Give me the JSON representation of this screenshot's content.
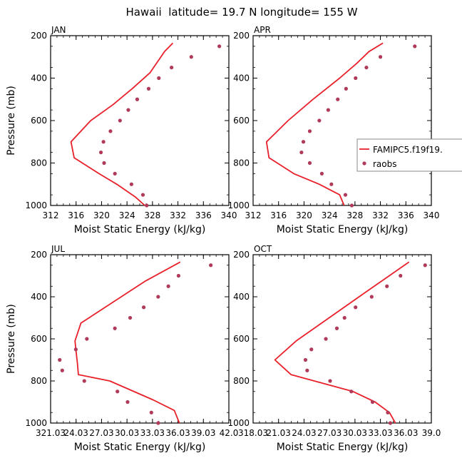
{
  "title": "Hawaii  latitude= 19.7 N longitude= 155 W",
  "colors": {
    "model": "#e8202a",
    "obs": "#b03a5a",
    "axis": "#000000"
  },
  "legend": {
    "model_label": "FAMIPC5.f19f19.",
    "obs_label": "raobs"
  },
  "chart_data": [
    {
      "type": "line",
      "panel": "JAN",
      "xlabel": "Moist Static Energy (kJ/kg)",
      "ylabel": "Pressure (mb)",
      "xlim": [
        312,
        340
      ],
      "ylim": [
        1000,
        200
      ],
      "xticks": [
        312,
        316,
        320,
        324,
        328,
        332,
        336,
        340
      ],
      "xtick_labels": [
        "312",
        "316",
        "320",
        "324",
        "328",
        "332",
        "336",
        "340"
      ],
      "yticks": [
        200,
        400,
        600,
        800,
        1000
      ],
      "ytick_labels": [
        "200",
        "400",
        "600",
        "800",
        "1000"
      ],
      "model": {
        "p": [
          1000,
          960,
          900,
          850,
          775,
          700,
          600,
          525,
          450,
          375,
          275,
          235
        ],
        "x": [
          326.8,
          325.3,
          322.4,
          319.6,
          315.7,
          315.2,
          318.3,
          321.8,
          324.8,
          327.6,
          329.9,
          331.2
        ]
      },
      "obs": {
        "p": [
          250,
          300,
          350,
          400,
          450,
          500,
          550,
          600,
          650,
          700,
          750,
          800,
          850,
          900,
          950,
          1000
        ],
        "x": [
          338.5,
          334.1,
          331.0,
          329.0,
          327.4,
          325.6,
          324.2,
          322.9,
          321.4,
          320.3,
          319.9,
          320.4,
          322.1,
          324.7,
          326.5,
          327.1
        ]
      }
    },
    {
      "type": "line",
      "panel": "APR",
      "xlabel": "Moist Static Energy (kJ/kg)",
      "ylabel": "",
      "xlim": [
        312,
        340
      ],
      "ylim": [
        1000,
        200
      ],
      "xticks": [
        312,
        316,
        320,
        324,
        328,
        332,
        336,
        340
      ],
      "xtick_labels": [
        "312",
        "316",
        "320",
        "324",
        "328",
        "332",
        "336",
        "340"
      ],
      "yticks": [
        200,
        400,
        600,
        800,
        1000
      ],
      "ytick_labels": [
        "200",
        "400",
        "600",
        "800",
        "1000"
      ],
      "model": {
        "p": [
          1000,
          950,
          900,
          850,
          775,
          700,
          600,
          500,
          400,
          330,
          275,
          235
        ],
        "x": [
          326.3,
          325.6,
          322.4,
          318.4,
          314.5,
          314.1,
          317.5,
          321.4,
          325.6,
          328.3,
          330.2,
          332.4
        ]
      },
      "obs": {
        "p": [
          250,
          300,
          350,
          400,
          450,
          500,
          550,
          600,
          650,
          700,
          750,
          800,
          850,
          900,
          950,
          1000
        ],
        "x": [
          337.4,
          332.0,
          329.8,
          328.1,
          326.6,
          325.3,
          323.8,
          322.4,
          320.9,
          319.9,
          319.6,
          320.9,
          322.8,
          324.3,
          326.5,
          327.5
        ]
      }
    },
    {
      "type": "line",
      "panel": "JUL",
      "xlabel": "Moist Static Energy (kJ/kg)",
      "ylabel": "Pressure (mb)",
      "xlim": [
        321.03,
        342.03
      ],
      "ylim": [
        1000,
        200
      ],
      "xticks": [
        321.03,
        324.03,
        327.03,
        330.03,
        333.03,
        336.03,
        339.03,
        342.03
      ],
      "xtick_labels": [
        "321.03",
        "24.03",
        "27.03",
        "30.03",
        "33.03",
        "36.03",
        "39.03",
        "42.0"
      ],
      "yticks": [
        200,
        400,
        600,
        800,
        1000
      ],
      "ytick_labels": [
        "200",
        "400",
        "600",
        "800",
        "1000"
      ],
      "model": {
        "p": [
          1000,
          940,
          890,
          800,
          770,
          720,
          650,
          610,
          525,
          325,
          235
        ],
        "x": [
          336.2,
          335.6,
          333.1,
          328.0,
          324.3,
          324.2,
          324.0,
          323.9,
          324.6,
          332.2,
          336.3
        ]
      },
      "obs": {
        "p": [
          250,
          300,
          350,
          400,
          450,
          500,
          550,
          600,
          650,
          700,
          750,
          800,
          850,
          900,
          950,
          1000
        ],
        "x": [
          339.9,
          336.1,
          334.9,
          333.7,
          332.0,
          330.4,
          328.6,
          325.3,
          324.0,
          322.1,
          322.4,
          325.0,
          328.9,
          330.1,
          332.9,
          333.7
        ]
      }
    },
    {
      "type": "line",
      "panel": "OCT",
      "xlabel": "Moist Static Energy (kJ/kg)",
      "ylabel": "",
      "xlim": [
        318.03,
        339.03
      ],
      "ylim": [
        1000,
        200
      ],
      "xticks": [
        318.03,
        321.03,
        324.03,
        327.03,
        330.03,
        333.03,
        336.03,
        339.03
      ],
      "xtick_labels": [
        "318.03",
        "21.03",
        "24.03",
        "27.03",
        "30.03",
        "33.03",
        "36.03",
        "39.0"
      ],
      "yticks": [
        200,
        400,
        600,
        800,
        1000
      ],
      "ytick_labels": [
        "200",
        "400",
        "600",
        "800",
        "1000"
      ],
      "model": {
        "p": [
          1000,
          950,
          900,
          850,
          770,
          700,
          610,
          525,
          375,
          235
        ],
        "x": [
          334.8,
          334.1,
          332.4,
          329.8,
          322.5,
          320.6,
          323.1,
          326.1,
          331.4,
          336.4
        ]
      },
      "obs": {
        "p": [
          250,
          300,
          350,
          400,
          450,
          500,
          550,
          600,
          650,
          700,
          750,
          800,
          850,
          900,
          950,
          1000
        ],
        "x": [
          338.3,
          335.4,
          333.8,
          332.0,
          330.1,
          328.8,
          327.9,
          326.6,
          324.9,
          324.2,
          324.4,
          327.1,
          329.6,
          332.1,
          333.9,
          334.2
        ]
      }
    }
  ]
}
